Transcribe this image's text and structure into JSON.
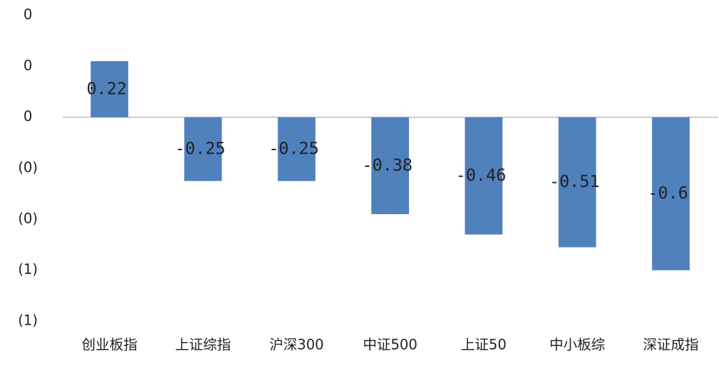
{
  "chart_data": {
    "type": "bar",
    "categories": [
      "创业板指",
      "上证综指",
      "沪深300",
      "中证500",
      "上证50",
      "中小板综",
      "深证成指"
    ],
    "values": [
      0.22,
      -0.25,
      -0.25,
      -0.38,
      -0.46,
      -0.51,
      -0.6
    ],
    "color": "#4f81bd",
    "ylim": [
      -0.8,
      0.4
    ],
    "yticks": [
      {
        "value": 0.4,
        "label": "0"
      },
      {
        "value": 0.2,
        "label": "0"
      },
      0,
      {
        "value": -0.2,
        "label": "(0)"
      },
      {
        "value": -0.4,
        "label": "(0)"
      },
      {
        "value": -0.6,
        "label": "(1)"
      },
      {
        "value": -0.8,
        "label": "(1)"
      }
    ],
    "negative_tick_color": "#c00000"
  }
}
